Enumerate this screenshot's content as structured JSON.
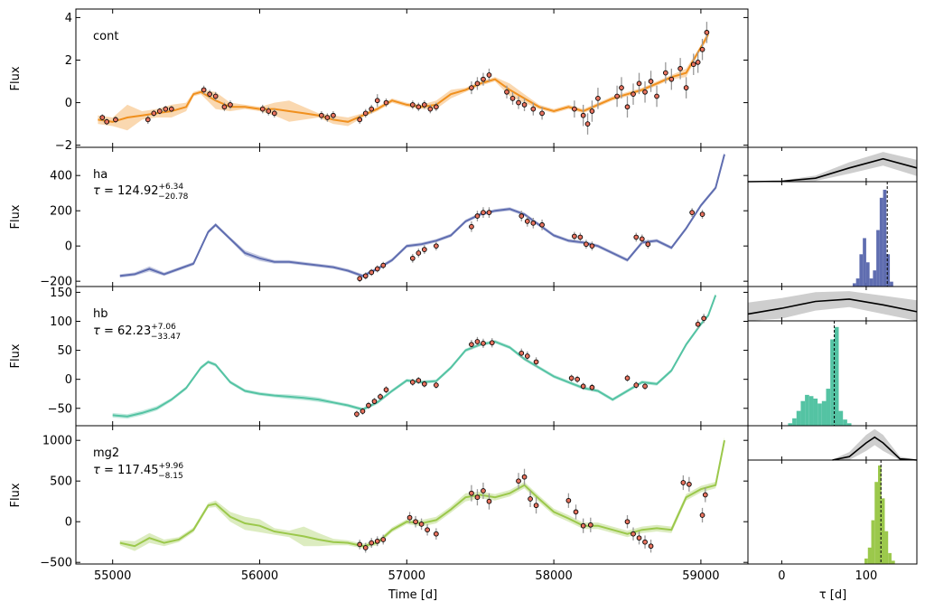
{
  "chart_data": {
    "type": "line",
    "xlabel": "Time [d]",
    "tau_xlabel": "τ [d]",
    "xlim": [
      54750,
      59320
    ],
    "x_ticks": [
      55000,
      56000,
      57000,
      58000,
      59000
    ],
    "tau_lim": [
      -40,
      160
    ],
    "tau_ticks": [
      0,
      100
    ],
    "series": [
      {
        "name": "cont",
        "color": "#f0901e",
        "ylabel": "Flux",
        "ylim": [
          -2.1,
          4.4
        ],
        "y_ticks": [
          -2,
          0,
          2,
          4
        ],
        "model_x": [
          54900,
          55000,
          55100,
          55200,
          55300,
          55400,
          55500,
          55550,
          55600,
          55700,
          55800,
          55900,
          56000,
          56100,
          56200,
          56300,
          56400,
          56500,
          56600,
          56700,
          56800,
          56900,
          57000,
          57100,
          57200,
          57300,
          57400,
          57500,
          57600,
          57700,
          57800,
          57900,
          58000,
          58100,
          58200,
          58300,
          58400,
          58500,
          58600,
          58700,
          58800,
          58900,
          59000,
          59050
        ],
        "model_y": [
          -0.8,
          -0.9,
          -0.7,
          -0.6,
          -0.5,
          -0.4,
          -0.2,
          0.4,
          0.5,
          0.1,
          -0.2,
          -0.2,
          -0.3,
          -0.3,
          -0.4,
          -0.5,
          -0.6,
          -0.8,
          -0.9,
          -0.6,
          -0.3,
          0.1,
          -0.1,
          -0.2,
          -0.1,
          0.4,
          0.6,
          0.9,
          1.1,
          0.6,
          0.2,
          -0.2,
          -0.4,
          -0.2,
          -0.4,
          -0.1,
          0.2,
          0.4,
          0.6,
          0.9,
          1.2,
          1.4,
          2.6,
          3.2
        ],
        "model_band": [
          0.2,
          0.2,
          0.6,
          0.2,
          0.2,
          0.3,
          0.2,
          0.1,
          0.1,
          0.4,
          0.2,
          0.1,
          0.1,
          0.3,
          0.5,
          0.3,
          0.1,
          0.2,
          0.2,
          0.1,
          0.1,
          0.1,
          0.1,
          0.1,
          0.2,
          0.2,
          0.1,
          0.1,
          0.1,
          0.3,
          0.2,
          0.1,
          0.1,
          0.1,
          0.1,
          0.1,
          0.1,
          0.1,
          0.1,
          0.1,
          0.1,
          0.2,
          0.1,
          0.2
        ],
        "obs_x": [
          54930,
          54960,
          55020,
          55240,
          55280,
          55320,
          55360,
          55400,
          55620,
          55660,
          55700,
          55760,
          55800,
          56020,
          56060,
          56100,
          56420,
          56460,
          56500,
          56680,
          56720,
          56760,
          56800,
          56860,
          57040,
          57080,
          57120,
          57160,
          57200,
          57440,
          57480,
          57520,
          57560,
          57680,
          57720,
          57760,
          57800,
          57860,
          57920,
          58140,
          58200,
          58230,
          58260,
          58300,
          58430,
          58460,
          58500,
          58540,
          58580,
          58620,
          58660,
          58700,
          58760,
          58800,
          58860,
          58900,
          58950,
          58980,
          59010,
          59040
        ],
        "obs_y": [
          -0.7,
          -0.9,
          -0.8,
          -0.8,
          -0.5,
          -0.4,
          -0.3,
          -0.3,
          0.6,
          0.4,
          0.3,
          -0.2,
          -0.1,
          -0.3,
          -0.4,
          -0.5,
          -0.6,
          -0.7,
          -0.6,
          -0.8,
          -0.5,
          -0.3,
          0.1,
          0.0,
          -0.1,
          -0.2,
          -0.1,
          -0.3,
          -0.2,
          0.7,
          0.9,
          1.1,
          1.3,
          0.5,
          0.2,
          0.0,
          -0.1,
          -0.3,
          -0.5,
          -0.3,
          -0.6,
          -1.0,
          -0.4,
          0.2,
          0.3,
          0.7,
          -0.2,
          0.4,
          0.9,
          0.5,
          1.0,
          0.3,
          1.4,
          1.1,
          1.6,
          0.7,
          1.8,
          1.9,
          2.5,
          3.3
        ],
        "obs_err": [
          0.15,
          0.15,
          0.15,
          0.2,
          0.15,
          0.15,
          0.15,
          0.15,
          0.2,
          0.2,
          0.2,
          0.2,
          0.2,
          0.2,
          0.2,
          0.2,
          0.2,
          0.2,
          0.2,
          0.2,
          0.2,
          0.2,
          0.3,
          0.2,
          0.2,
          0.2,
          0.2,
          0.2,
          0.2,
          0.3,
          0.3,
          0.3,
          0.3,
          0.3,
          0.3,
          0.3,
          0.3,
          0.3,
          0.3,
          0.4,
          0.5,
          0.5,
          0.5,
          0.5,
          0.5,
          0.5,
          0.5,
          0.5,
          0.5,
          0.5,
          0.5,
          0.5,
          0.5,
          0.5,
          0.5,
          0.5,
          0.5,
          0.5,
          0.5,
          0.5
        ]
      },
      {
        "name": "ha",
        "tau_value": "124.92",
        "tau_err_up": "+6.34",
        "tau_err_down": "−20.78",
        "color": "#5f6db0",
        "ylabel": "Flux",
        "ylim": [
          -230,
          560
        ],
        "y_ticks": [
          -200,
          0,
          200,
          400
        ],
        "model_x": [
          55050,
          55150,
          55250,
          55350,
          55450,
          55550,
          55650,
          55700,
          55800,
          55900,
          56000,
          56100,
          56200,
          56300,
          56400,
          56500,
          56600,
          56700,
          56800,
          56900,
          57000,
          57100,
          57200,
          57300,
          57400,
          57500,
          57600,
          57700,
          57800,
          57900,
          58000,
          58100,
          58200,
          58300,
          58400,
          58500,
          58600,
          58700,
          58800,
          58900,
          59000,
          59100,
          59160
        ],
        "model_y": [
          -170,
          -160,
          -130,
          -160,
          -130,
          -100,
          80,
          120,
          40,
          -40,
          -70,
          -90,
          -90,
          -100,
          -110,
          -120,
          -140,
          -170,
          -130,
          -80,
          0,
          10,
          30,
          60,
          140,
          180,
          200,
          210,
          180,
          120,
          60,
          30,
          20,
          0,
          -40,
          -80,
          20,
          30,
          -10,
          100,
          230,
          330,
          520
        ],
        "model_band": [
          10,
          10,
          15,
          10,
          10,
          10,
          10,
          10,
          10,
          15,
          15,
          10,
          10,
          10,
          10,
          10,
          10,
          10,
          10,
          10,
          10,
          10,
          10,
          10,
          10,
          10,
          10,
          10,
          10,
          10,
          10,
          10,
          10,
          10,
          10,
          10,
          10,
          10,
          10,
          10,
          10,
          10,
          10
        ],
        "obs_x": [
          56680,
          56720,
          56760,
          56800,
          56840,
          57040,
          57080,
          57120,
          57200,
          57440,
          57480,
          57520,
          57560,
          57780,
          57820,
          57860,
          57920,
          58140,
          58180,
          58220,
          58260,
          58560,
          58600,
          58640,
          58940,
          59010
        ],
        "obs_y": [
          -185,
          -170,
          -150,
          -130,
          -110,
          -70,
          -40,
          -20,
          0,
          110,
          170,
          190,
          190,
          170,
          140,
          130,
          120,
          55,
          50,
          10,
          0,
          50,
          40,
          10,
          190,
          180
        ],
        "obs_err": [
          20,
          20,
          20,
          20,
          20,
          25,
          25,
          25,
          25,
          30,
          30,
          30,
          30,
          30,
          30,
          30,
          30,
          25,
          25,
          25,
          25,
          25,
          25,
          25,
          25,
          25
        ],
        "tau_kernel_x": [
          -40,
          0,
          40,
          80,
          120,
          160
        ],
        "tau_kernel_y": [
          0.0,
          0.02,
          0.15,
          0.6,
          1.0,
          0.6
        ],
        "tau_kernel_band": [
          0.0,
          0.03,
          0.12,
          0.25,
          0.3,
          0.35
        ],
        "tau_kernel_ylim": [
          0,
          1.5
        ],
        "tau_hist_x": [
          86,
          90,
          94,
          98,
          102,
          106,
          110,
          114,
          118,
          122,
          126,
          130
        ],
        "tau_hist_y": [
          2,
          5,
          20,
          30,
          15,
          5,
          10,
          35,
          55,
          60,
          20,
          3
        ],
        "tau_hist_ymax": 65
      },
      {
        "name": "hb",
        "tau_value": "62.23",
        "tau_err_up": "+7.06",
        "tau_err_down": "−33.47",
        "color": "#54c3a3",
        "ylabel": "Flux",
        "ylim": [
          -80,
          160
        ],
        "y_ticks": [
          -50,
          0,
          50,
          100,
          150
        ],
        "model_x": [
          55000,
          55100,
          55200,
          55300,
          55400,
          55500,
          55600,
          55650,
          55700,
          55800,
          55900,
          56000,
          56100,
          56200,
          56300,
          56400,
          56500,
          56600,
          56700,
          56800,
          56900,
          57000,
          57100,
          57200,
          57300,
          57400,
          57500,
          57600,
          57700,
          57800,
          57900,
          58000,
          58100,
          58200,
          58300,
          58400,
          58500,
          58600,
          58700,
          58800,
          58900,
          59000,
          59050,
          59100
        ],
        "model_y": [
          -62,
          -64,
          -58,
          -50,
          -35,
          -15,
          20,
          30,
          25,
          -5,
          -20,
          -25,
          -28,
          -30,
          -32,
          -35,
          -40,
          -45,
          -52,
          -40,
          -20,
          -2,
          -5,
          -3,
          20,
          50,
          60,
          65,
          55,
          35,
          20,
          5,
          -5,
          -15,
          -20,
          -35,
          -20,
          -5,
          -8,
          15,
          60,
          95,
          110,
          145
        ],
        "model_band": [
          4,
          4,
          4,
          4,
          3,
          3,
          3,
          3,
          3,
          3,
          3,
          3,
          3,
          4,
          4,
          4,
          3,
          3,
          3,
          3,
          3,
          3,
          3,
          3,
          3,
          3,
          3,
          3,
          3,
          3,
          3,
          3,
          3,
          3,
          3,
          3,
          3,
          3,
          3,
          3,
          3,
          3,
          3,
          3
        ],
        "obs_x": [
          56660,
          56700,
          56740,
          56780,
          56820,
          56860,
          57040,
          57080,
          57120,
          57200,
          57440,
          57480,
          57520,
          57580,
          57780,
          57820,
          57880,
          58120,
          58160,
          58200,
          58260,
          58500,
          58560,
          58620,
          58980,
          59020
        ],
        "obs_y": [
          -60,
          -55,
          -45,
          -38,
          -30,
          -18,
          -5,
          -2,
          -8,
          -10,
          60,
          65,
          62,
          63,
          45,
          40,
          30,
          2,
          0,
          -12,
          -14,
          2,
          -10,
          -12,
          95,
          105
        ],
        "obs_err": [
          6,
          6,
          6,
          6,
          6,
          6,
          6,
          6,
          6,
          6,
          8,
          8,
          8,
          8,
          8,
          8,
          8,
          6,
          6,
          6,
          6,
          6,
          6,
          6,
          8,
          8
        ],
        "tau_kernel_x": [
          -40,
          0,
          40,
          80,
          120,
          160
        ],
        "tau_kernel_y": [
          0.3,
          0.55,
          0.85,
          0.95,
          0.7,
          0.4
        ],
        "tau_kernel_band": [
          0.5,
          0.45,
          0.4,
          0.35,
          0.4,
          0.5
        ],
        "tau_kernel_ylim": [
          0,
          1.5
        ],
        "tau_hist_x": [
          10,
          15,
          20,
          25,
          30,
          35,
          40,
          45,
          50,
          55,
          60,
          65,
          70,
          75,
          80
        ],
        "tau_hist_y": [
          2,
          6,
          12,
          20,
          25,
          24,
          22,
          18,
          20,
          30,
          70,
          80,
          12,
          5,
          2
        ],
        "tau_hist_ymax": 85
      },
      {
        "name": "mg2",
        "tau_value": "117.45",
        "tau_err_up": "+9.96",
        "tau_err_down": "−8.15",
        "color": "#9bc84b",
        "ylabel": "Flux",
        "ylim": [
          -520,
          1180
        ],
        "y_ticks": [
          -500,
          0,
          500,
          1000
        ],
        "model_x": [
          55050,
          55150,
          55250,
          55350,
          55450,
          55550,
          55650,
          55700,
          55800,
          55900,
          56000,
          56100,
          56200,
          56300,
          56400,
          56500,
          56600,
          56700,
          56800,
          56900,
          57000,
          57100,
          57200,
          57300,
          57400,
          57500,
          57600,
          57700,
          57800,
          57900,
          58000,
          58100,
          58200,
          58300,
          58400,
          58500,
          58600,
          58700,
          58800,
          58900,
          59000,
          59100,
          59160
        ],
        "model_y": [
          -260,
          -300,
          -200,
          -260,
          -220,
          -100,
          200,
          220,
          60,
          -20,
          -50,
          -120,
          -150,
          -180,
          -220,
          -250,
          -260,
          -300,
          -260,
          -100,
          0,
          -20,
          20,
          150,
          300,
          330,
          300,
          350,
          450,
          280,
          120,
          40,
          -50,
          -50,
          -100,
          -150,
          -100,
          -80,
          -100,
          300,
          400,
          450,
          1000
        ],
        "model_band": [
          30,
          60,
          60,
          40,
          30,
          30,
          30,
          40,
          60,
          80,
          80,
          40,
          40,
          120,
          80,
          40,
          30,
          30,
          30,
          30,
          30,
          40,
          40,
          40,
          50,
          40,
          40,
          40,
          40,
          40,
          40,
          40,
          40,
          40,
          40,
          40,
          40,
          40,
          40,
          40,
          40,
          40,
          40
        ],
        "obs_x": [
          56680,
          56720,
          56760,
          56800,
          56840,
          57020,
          57060,
          57100,
          57140,
          57200,
          57440,
          57480,
          57520,
          57560,
          57760,
          57800,
          57840,
          57880,
          58100,
          58150,
          58200,
          58250,
          58500,
          58540,
          58580,
          58620,
          58660,
          58880,
          58920,
          59010,
          59030
        ],
        "obs_y": [
          -280,
          -320,
          -260,
          -240,
          -220,
          50,
          0,
          -30,
          -100,
          -150,
          350,
          300,
          380,
          250,
          500,
          550,
          280,
          200,
          260,
          120,
          -50,
          -40,
          0,
          -150,
          -200,
          -250,
          -300,
          480,
          460,
          80,
          330
        ],
        "obs_err": [
          60,
          60,
          60,
          60,
          60,
          70,
          70,
          70,
          70,
          70,
          100,
          100,
          100,
          100,
          100,
          100,
          100,
          100,
          90,
          90,
          90,
          90,
          80,
          80,
          80,
          80,
          80,
          90,
          90,
          90,
          90
        ],
        "tau_kernel_x": [
          60,
          80,
          100,
          110,
          120,
          140,
          160
        ],
        "tau_kernel_y": [
          0.0,
          0.15,
          0.75,
          1.0,
          0.75,
          0.05,
          0.0
        ],
        "tau_kernel_band": [
          0.02,
          0.2,
          0.35,
          0.35,
          0.35,
          0.1,
          0.02
        ],
        "tau_kernel_ylim": [
          0,
          1.5
        ],
        "tau_hist_x": [
          100,
          104,
          108,
          112,
          116,
          120,
          124,
          128,
          132
        ],
        "tau_hist_y": [
          5,
          15,
          40,
          75,
          90,
          60,
          30,
          10,
          3
        ],
        "tau_hist_ymax": 95
      }
    ]
  }
}
